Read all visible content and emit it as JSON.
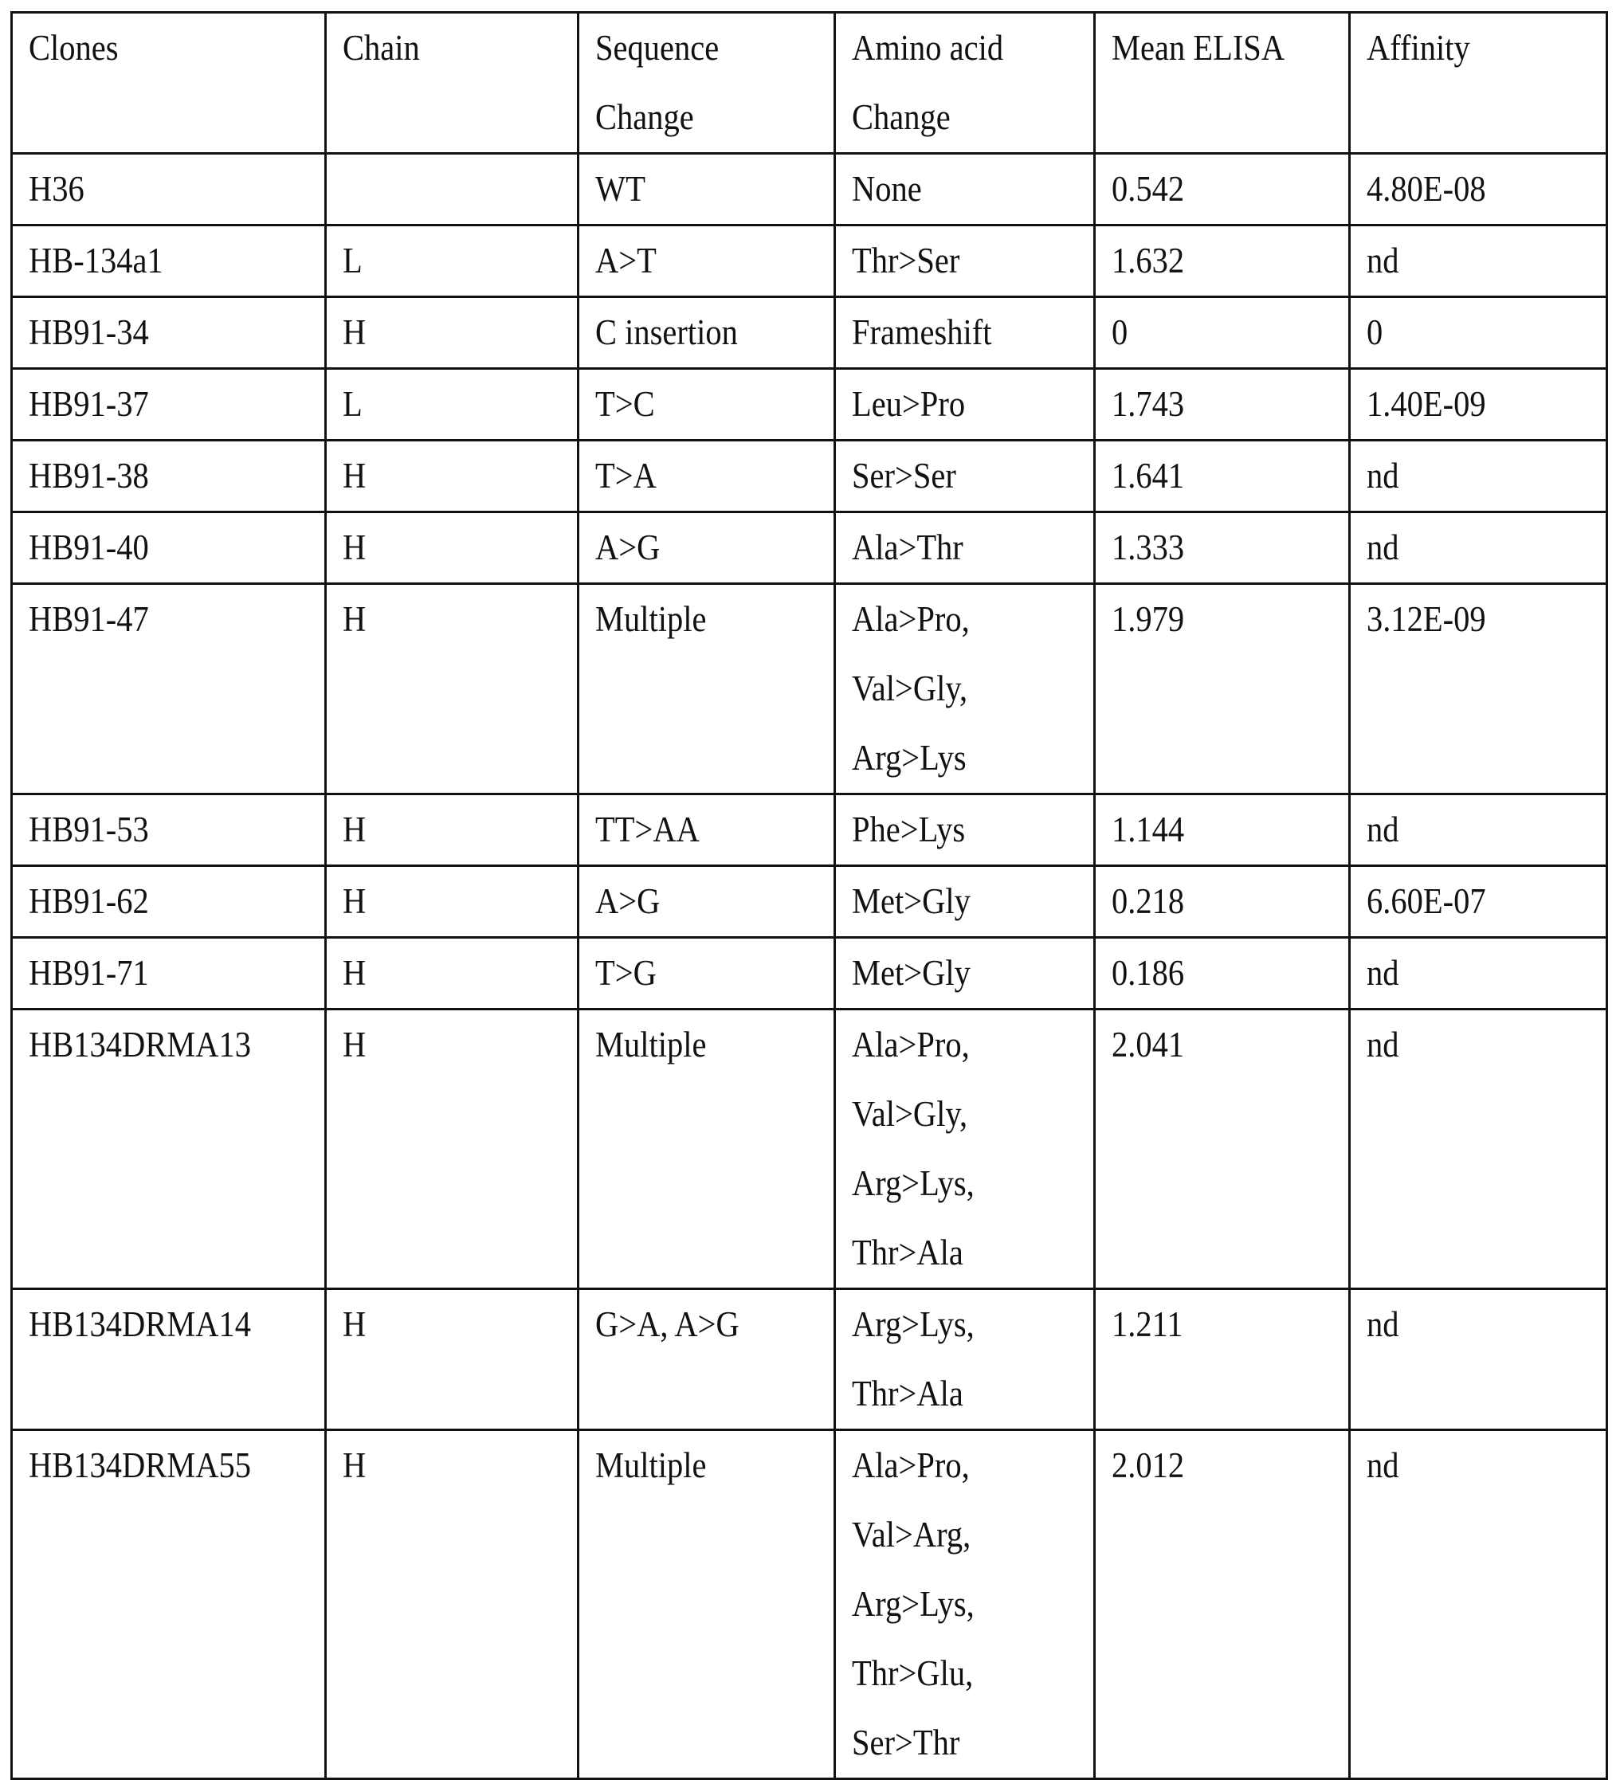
{
  "table": {
    "headers": [
      [
        "Clones"
      ],
      [
        "Chain"
      ],
      [
        "Sequence",
        "Change"
      ],
      [
        "Amino acid",
        "Change"
      ],
      [
        "Mean ELISA"
      ],
      [
        "Affinity"
      ]
    ],
    "rows": [
      {
        "clone": "H36",
        "chain": "",
        "sequence": "WT",
        "amino": [
          "None"
        ],
        "elisa": "0.542",
        "affinity": "4.80E-08"
      },
      {
        "clone": "HB-134a1",
        "chain": "L",
        "sequence": "A>T",
        "amino": [
          "Thr>Ser"
        ],
        "elisa": "1.632",
        "affinity": "nd"
      },
      {
        "clone": "HB91-34",
        "chain": "H",
        "sequence": "C insertion",
        "amino": [
          "Frameshift"
        ],
        "elisa": "0",
        "affinity": "0"
      },
      {
        "clone": "HB91-37",
        "chain": "L",
        "sequence": "T>C",
        "amino": [
          "Leu>Pro"
        ],
        "elisa": "1.743",
        "affinity": "1.40E-09"
      },
      {
        "clone": "HB91-38",
        "chain": "H",
        "sequence": "T>A",
        "amino": [
          "Ser>Ser"
        ],
        "elisa": "1.641",
        "affinity": "nd"
      },
      {
        "clone": "HB91-40",
        "chain": "H",
        "sequence": "A>G",
        "amino": [
          "Ala>Thr"
        ],
        "elisa": "1.333",
        "affinity": "nd"
      },
      {
        "clone": "HB91-47",
        "chain": "H",
        "sequence": "Multiple",
        "amino": [
          "Ala>Pro,",
          "Val>Gly,",
          "Arg>Lys"
        ],
        "elisa": "1.979",
        "affinity": "3.12E-09"
      },
      {
        "clone": "HB91-53",
        "chain": "H",
        "sequence": "TT>AA",
        "amino": [
          "Phe>Lys"
        ],
        "elisa": "1.144",
        "affinity": "nd"
      },
      {
        "clone": "HB91-62",
        "chain": "H",
        "sequence": "A>G",
        "amino": [
          "Met>Gly"
        ],
        "elisa": "0.218",
        "affinity": "6.60E-07"
      },
      {
        "clone": "HB91-71",
        "chain": "H",
        "sequence": "T>G",
        "amino": [
          "Met>Gly"
        ],
        "elisa": "0.186",
        "affinity": "nd"
      },
      {
        "clone": "HB134DRMA13",
        "chain": "H",
        "sequence": "Multiple",
        "amino": [
          "Ala>Pro,",
          "Val>Gly,",
          "Arg>Lys,",
          "Thr>Ala"
        ],
        "elisa": "2.041",
        "affinity": "nd"
      },
      {
        "clone": "HB134DRMA14",
        "chain": "H",
        "sequence": "G>A, A>G",
        "amino": [
          "Arg>Lys,",
          "Thr>Ala"
        ],
        "elisa": "1.211",
        "affinity": "nd"
      },
      {
        "clone": "HB134DRMA55",
        "chain": "H",
        "sequence": "Multiple",
        "amino": [
          "Ala>Pro,",
          "Val>Arg,",
          "Arg>Lys,",
          "Thr>Glu,",
          "Ser>Thr"
        ],
        "elisa": "2.012",
        "affinity": "nd"
      }
    ]
  }
}
